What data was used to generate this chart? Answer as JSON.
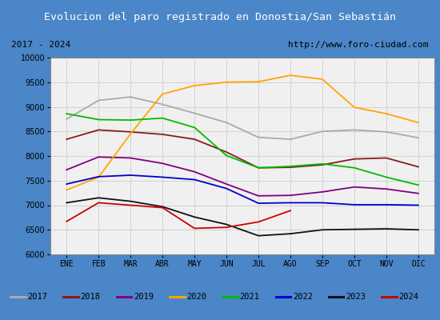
{
  "title": "Evolucion del paro registrado en Donostia/San Sebastián",
  "subtitle_left": "2017 - 2024",
  "subtitle_right": "http://www.foro-ciudad.com",
  "ylim": [
    6000,
    10000
  ],
  "months": [
    "ENE",
    "FEB",
    "MAR",
    "ABR",
    "MAY",
    "JUN",
    "JUL",
    "AGO",
    "SEP",
    "OCT",
    "NOV",
    "DIC"
  ],
  "series": {
    "2017": {
      "color": "#aaaaaa",
      "data": [
        8750,
        9130,
        9200,
        9050,
        8870,
        8680,
        8380,
        8340,
        8500,
        8530,
        8490,
        8370
      ]
    },
    "2018": {
      "color": "#8b1a1a",
      "data": [
        8340,
        8530,
        8490,
        8440,
        8340,
        8080,
        7760,
        7770,
        7820,
        7940,
        7960,
        7780
      ]
    },
    "2019": {
      "color": "#800080",
      "data": [
        7720,
        7980,
        7960,
        7850,
        7680,
        7430,
        7190,
        7200,
        7270,
        7370,
        7330,
        7240
      ]
    },
    "2020": {
      "color": "#ffa500",
      "data": [
        7310,
        7570,
        8450,
        9260,
        9430,
        9500,
        9510,
        9640,
        9560,
        8990,
        8860,
        8680
      ]
    },
    "2021": {
      "color": "#00bb00",
      "data": [
        8860,
        8740,
        8730,
        8770,
        8580,
        8010,
        7760,
        7790,
        7840,
        7760,
        7570,
        7410
      ]
    },
    "2022": {
      "color": "#0000cc",
      "data": [
        7430,
        7580,
        7610,
        7570,
        7520,
        7340,
        7040,
        7050,
        7050,
        7010,
        7010,
        7000
      ]
    },
    "2023": {
      "color": "#111111",
      "data": [
        7050,
        7150,
        7080,
        6970,
        6760,
        6610,
        6380,
        6420,
        6500,
        6510,
        6520,
        6500
      ]
    },
    "2024": {
      "color": "#cc0000",
      "data": [
        6670,
        7050,
        7000,
        6950,
        6530,
        6550,
        6660,
        6890,
        null,
        null,
        null,
        null
      ]
    }
  },
  "title_bg": "#4a86c8",
  "title_color": "white",
  "subtitle_bg": "#e8e8e8",
  "plot_bg": "#f0f0f0",
  "grid_color": "#cccccc",
  "border_color": "#555555",
  "outer_bg": "#4a86c8"
}
